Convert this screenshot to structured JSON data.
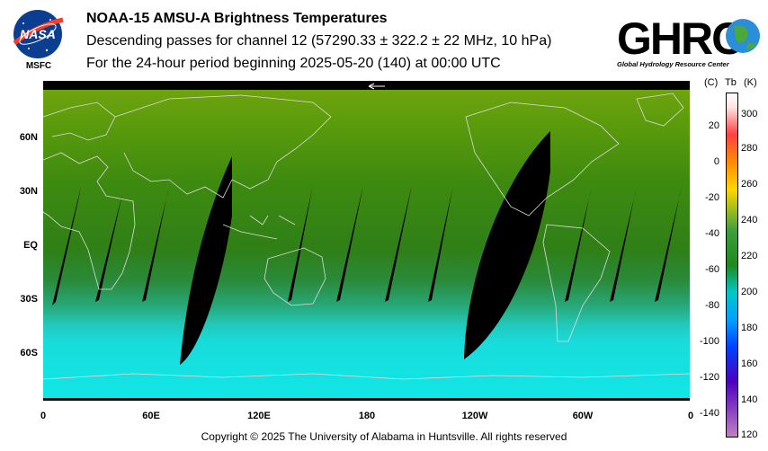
{
  "header": {
    "nasa_logo_text": "NASA",
    "nasa_caption": "MSFC",
    "title": "NOAA-15 AMSU-A Brightness Temperatures",
    "line2": "Descending passes for channel 12 (57290.33 ± 322.2 ± 22 MHz, 10 hPa)",
    "line3": "For the 24-hour period beginning 2025-05-20 (140) at 00:00 UTC",
    "ghrc_logo_text": "GHRC",
    "ghrc_caption": "Global Hydrology Resource Center"
  },
  "map": {
    "lat_labels": [
      "60N",
      "30N",
      "EQ",
      "30S",
      "60S"
    ],
    "lon_labels": [
      "0",
      "60E",
      "120E",
      "180",
      "120W",
      "60W",
      "0"
    ]
  },
  "colorbar": {
    "header_c": "(C)",
    "header_tb": "Tb",
    "header_k": "(K)",
    "celsius_ticks": [
      "20",
      "0",
      "-20",
      "-40",
      "-60",
      "-80",
      "-100",
      "-120",
      "-140"
    ],
    "kelvin_ticks": [
      "300",
      "280",
      "260",
      "240",
      "220",
      "200",
      "180",
      "160",
      "140",
      "120"
    ]
  },
  "footer": {
    "copyright": "Copyright © 2025 The University of Alabama in Huntsville.  All rights reserved"
  }
}
